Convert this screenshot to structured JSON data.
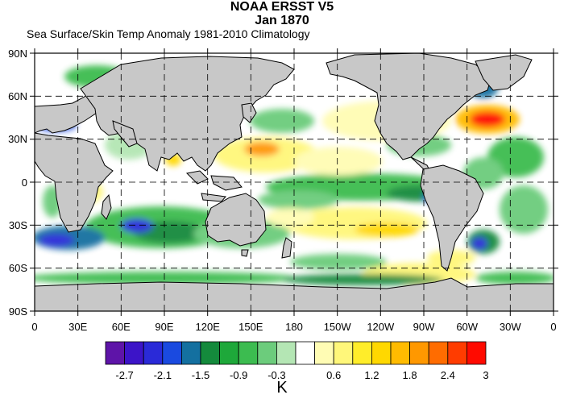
{
  "title_line1": "NOAA ERSST V5",
  "title_line2": "Jan 1870",
  "subtitle": "Sea Surface/Skin Temp Anomaly  1981-2010 Climatology",
  "lat_labels": [
    "90N",
    "60N",
    "30N",
    "0",
    "30S",
    "60S",
    "90S"
  ],
  "lon_labels": [
    "0",
    "30E",
    "60E",
    "90E",
    "120E",
    "150E",
    "180",
    "150W",
    "120W",
    "90W",
    "60W",
    "30W",
    "0"
  ],
  "colorbar": {
    "colors": [
      "#5e14a8",
      "#3c14c8",
      "#2a2ad8",
      "#1a4ae0",
      "#1470a0",
      "#148a3c",
      "#1ea83a",
      "#3cbc50",
      "#6ccc7c",
      "#b4e6b4",
      "#ffffff",
      "#fffcb4",
      "#fff77a",
      "#ffed2a",
      "#ffd800",
      "#ffbb00",
      "#ff9800",
      "#ff6c00",
      "#ff3c00",
      "#ff0a00"
    ],
    "labels": [
      "-2.7",
      "-2.1",
      "-1.5",
      "-0.9",
      "-0.3",
      "0.6",
      "1.2",
      "1.8",
      "2.4",
      "3"
    ],
    "label_positions": [
      1,
      3,
      5,
      7,
      9,
      11,
      13,
      15,
      17,
      19
    ],
    "units": "K"
  },
  "colors": {
    "land": "#c8c8c8",
    "ocean": "#ffffff",
    "grid": "#000000"
  }
}
